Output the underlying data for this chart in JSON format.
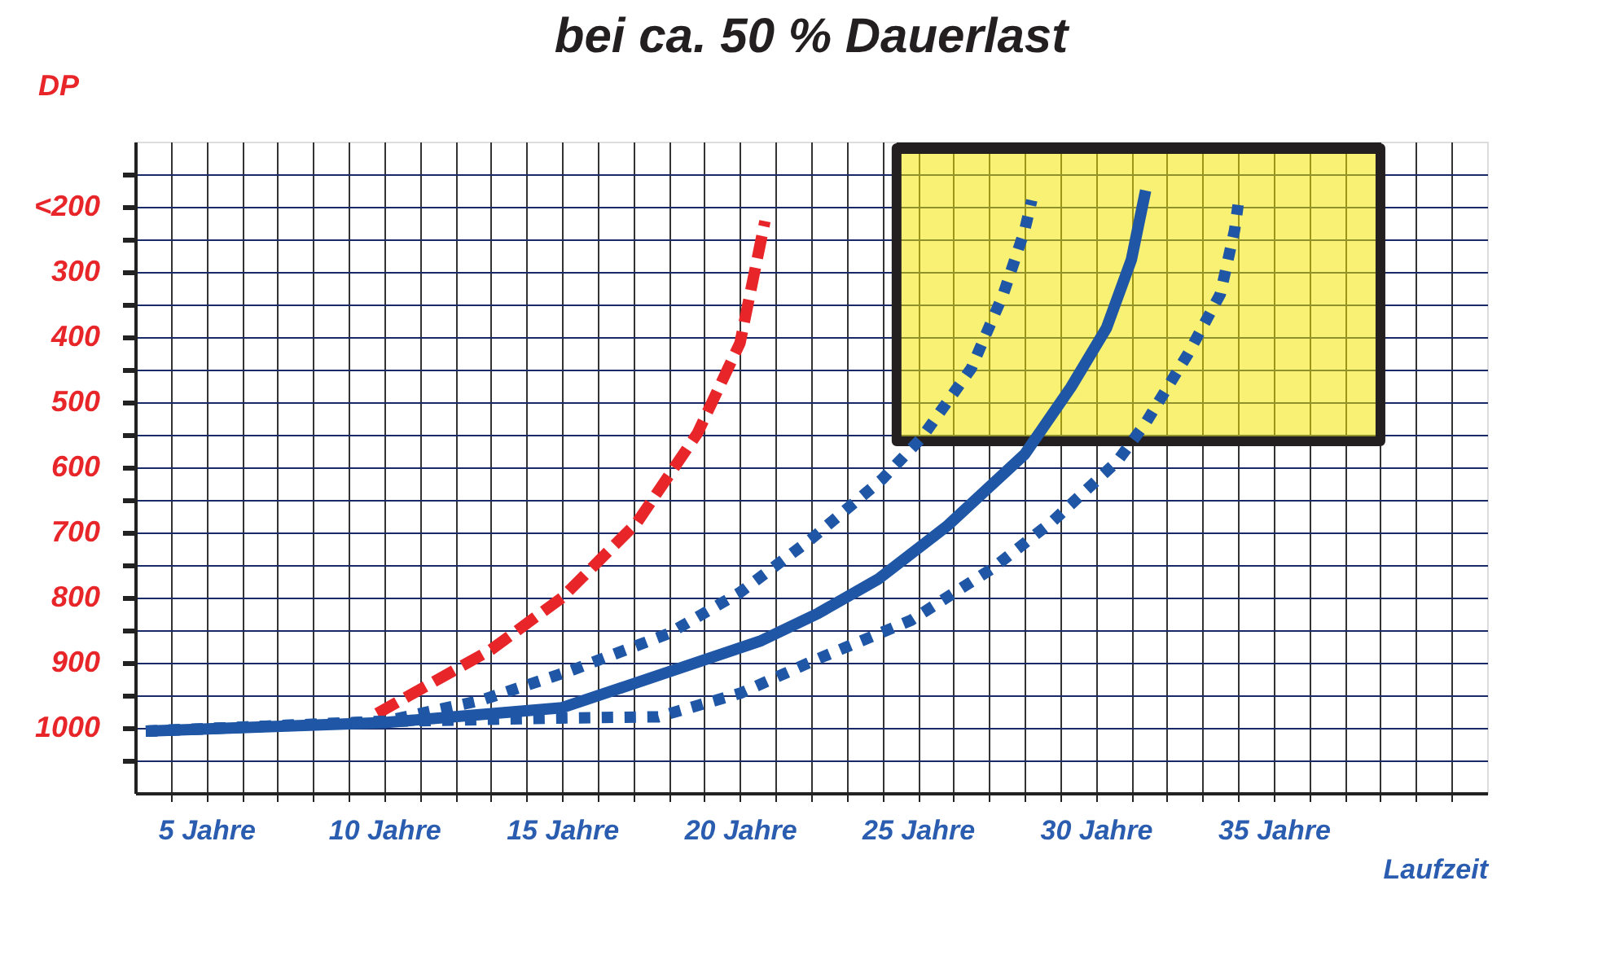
{
  "chart_data": {
    "type": "line",
    "title": "bei ca. 50 % Dauerlast",
    "xlabel": "Laufzeit",
    "ylabel": "DP",
    "xlim": [
      3,
      41
    ],
    "ylim": [
      1100,
      100
    ],
    "xticks": [
      {
        "value": 4,
        "label": null
      },
      {
        "value": 5,
        "label": "5 Jahre"
      },
      {
        "value": 6,
        "label": null
      },
      {
        "value": 7,
        "label": null
      },
      {
        "value": 8,
        "label": null
      },
      {
        "value": 9,
        "label": null
      },
      {
        "value": 10,
        "label": "10 Jahre"
      },
      {
        "value": 11,
        "label": null
      },
      {
        "value": 12,
        "label": null
      },
      {
        "value": 13,
        "label": null
      },
      {
        "value": 14,
        "label": null
      },
      {
        "value": 15,
        "label": "15 Jahre"
      },
      {
        "value": 16,
        "label": null
      },
      {
        "value": 17,
        "label": null
      },
      {
        "value": 18,
        "label": null
      },
      {
        "value": 19,
        "label": null
      },
      {
        "value": 20,
        "label": "20 Jahre"
      },
      {
        "value": 21,
        "label": null
      },
      {
        "value": 22,
        "label": null
      },
      {
        "value": 23,
        "label": null
      },
      {
        "value": 24,
        "label": null
      },
      {
        "value": 25,
        "label": "25 Jahre"
      },
      {
        "value": 26,
        "label": null
      },
      {
        "value": 27,
        "label": null
      },
      {
        "value": 28,
        "label": null
      },
      {
        "value": 29,
        "label": null
      },
      {
        "value": 30,
        "label": "30 Jahre"
      },
      {
        "value": 31,
        "label": null
      },
      {
        "value": 32,
        "label": null
      },
      {
        "value": 33,
        "label": null
      },
      {
        "value": 34,
        "label": null
      },
      {
        "value": 35,
        "label": "35 Jahre"
      },
      {
        "value": 36,
        "label": null
      },
      {
        "value": 37,
        "label": null
      },
      {
        "value": 38,
        "label": null
      },
      {
        "value": 39,
        "label": null
      },
      {
        "value": 40,
        "label": null
      }
    ],
    "yticks": [
      {
        "value": 1050,
        "label": null
      },
      {
        "value": 1000,
        "label": "1000"
      },
      {
        "value": 950,
        "label": null
      },
      {
        "value": 900,
        "label": "900"
      },
      {
        "value": 850,
        "label": null
      },
      {
        "value": 800,
        "label": "800"
      },
      {
        "value": 750,
        "label": null
      },
      {
        "value": 700,
        "label": "700"
      },
      {
        "value": 650,
        "label": null
      },
      {
        "value": 600,
        "label": "600"
      },
      {
        "value": 550,
        "label": null
      },
      {
        "value": 500,
        "label": "500"
      },
      {
        "value": 450,
        "label": null
      },
      {
        "value": 400,
        "label": "400"
      },
      {
        "value": 350,
        "label": null
      },
      {
        "value": 300,
        "label": "300"
      },
      {
        "value": 250,
        "label": null
      },
      {
        "value": 200,
        "label": "<200"
      },
      {
        "value": 150,
        "label": null
      }
    ],
    "grid": true,
    "marker": "none",
    "series": [
      {
        "type": "line",
        "color": "#231f20",
        "line_style": "solid",
        "x": [
          24.4,
          38
        ],
        "values": [
          110,
          110
        ],
        "lower": [
          560,
          560
        ],
        "upper": [
          110,
          110
        ]
      },
      {
        "color": "#e8262a",
        "line_style": "dashed",
        "x": [
          9.8,
          13,
          15,
          17.1,
          18.8,
          20,
          20.7
        ],
        "values": [
          978,
          880,
          800,
          685,
          548,
          409,
          222
        ]
      },
      {
        "color": "#1f56a5",
        "line_style": "dotted",
        "x": [
          3.3,
          10,
          12.7,
          15.2,
          18,
          20,
          22,
          24,
          25.1,
          26.5,
          27.4,
          28,
          28.2
        ],
        "values": [
          1005,
          990,
          958,
          913,
          855,
          792,
          710,
          618,
          555,
          448,
          334,
          236,
          190
        ]
      },
      {
        "color": "#1f56a5",
        "line_style": "solid",
        "x": [
          3.3,
          10,
          15,
          20.6,
          22.2,
          23.9,
          25.8,
          28,
          29.3,
          30.3,
          31,
          31.4
        ],
        "values": [
          1005,
          992,
          969,
          866,
          824,
          771,
          691,
          580,
          477,
          386,
          281,
          175
        ]
      },
      {
        "color": "#1f56a5",
        "line_style": "dotted",
        "x": [
          3.3,
          10,
          14.9,
          17.7,
          20,
          22.1,
          24.8,
          27.1,
          28.8,
          30.6,
          31.4,
          32.6,
          33.5,
          33.9,
          34
        ],
        "values": [
          1005,
          990,
          985,
          983,
          947,
          896,
          835,
          755,
          682,
          591,
          532,
          425,
          334,
          236,
          197
        ]
      }
    ]
  }
}
